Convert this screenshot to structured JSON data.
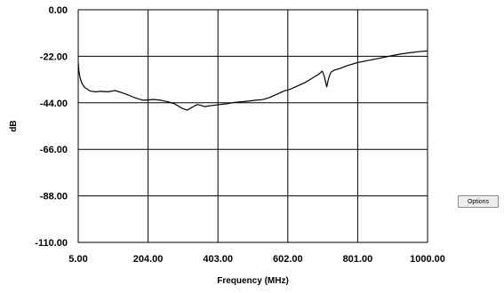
{
  "options_button": {
    "label": "Options"
  },
  "chart_data": {
    "type": "line",
    "title": "",
    "xlabel": "Frequency (MHz)",
    "ylabel": "dB",
    "xlim": [
      5,
      1000
    ],
    "ylim": [
      -110,
      0
    ],
    "x_ticks": [
      "5.00",
      "204.00",
      "403.00",
      "602.00",
      "801.00",
      "1000.00"
    ],
    "y_ticks": [
      "0.00",
      "-22.00",
      "-44.00",
      "-66.00",
      "-88.00",
      "-110.00"
    ],
    "grid": true,
    "legend": "none",
    "series": [
      {
        "color": "#000000",
        "x": [
          5,
          7,
          10,
          15,
          22,
          30,
          40,
          55,
          70,
          90,
          110,
          130,
          150,
          170,
          190,
          205,
          220,
          240,
          260,
          280,
          300,
          315,
          325,
          335,
          345,
          355,
          365,
          375,
          390,
          410,
          430,
          450,
          470,
          490,
          510,
          530,
          550,
          570,
          590,
          610,
          630,
          650,
          670,
          690,
          700,
          705,
          710,
          713,
          716,
          720,
          725,
          735,
          750,
          770,
          800,
          830,
          860,
          890,
          920,
          950,
          975,
          1000
        ],
        "y": [
          -25,
          -29,
          -32,
          -34.5,
          -36.5,
          -37.5,
          -38.5,
          -38.8,
          -38.6,
          -38.8,
          -38.2,
          -39.2,
          -40.5,
          -41.8,
          -42.8,
          -42.6,
          -42.4,
          -42.8,
          -43.5,
          -44.5,
          -46.5,
          -47.5,
          -46.5,
          -45.6,
          -44.8,
          -45.2,
          -45.8,
          -45.5,
          -45.2,
          -44.8,
          -44.4,
          -43.8,
          -43.5,
          -43.2,
          -42.8,
          -42.5,
          -41.5,
          -40,
          -38.5,
          -37.5,
          -36,
          -34.5,
          -32.5,
          -30.5,
          -29,
          -31,
          -34.5,
          -36.5,
          -34,
          -31.5,
          -29.5,
          -28.5,
          -27.8,
          -26.5,
          -25,
          -24,
          -23,
          -22,
          -21,
          -20.3,
          -19.8,
          -19.5
        ]
      }
    ]
  }
}
